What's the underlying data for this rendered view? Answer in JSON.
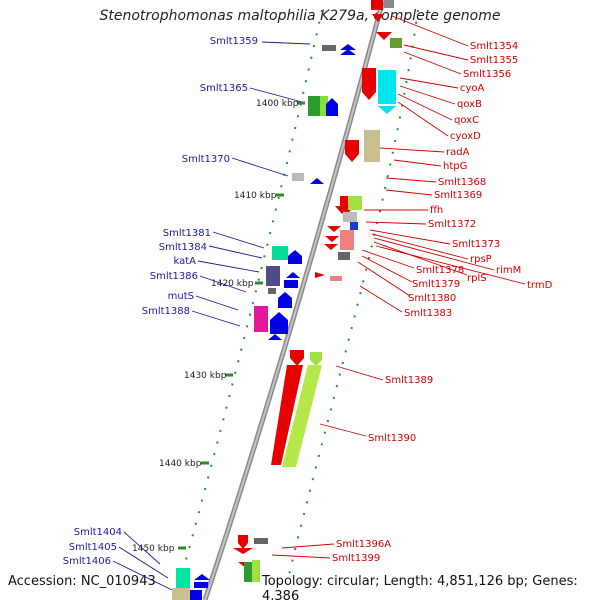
{
  "header": {
    "title": "Stenotrophomonas maltophilia K279a, complete genome"
  },
  "footer": {
    "accession": "Accession: NC_010943",
    "topology": "Topology: circular; Length: 4,851,126 bp; Genes: 4,386"
  },
  "scale_labels": [
    "1400 kbp",
    "1410 kbp",
    "1420 kbp",
    "1430 kbp",
    "1440 kbp",
    "1450 kbp"
  ],
  "genes_right": [
    "Smlt1354",
    "Smlt1355",
    "Smlt1356",
    "cyoA",
    "qoxB",
    "qoxC",
    "cyoxD",
    "radA",
    "htpG",
    "Smlt1368",
    "Smlt1369",
    "ffh",
    "Smlt1372",
    "Smlt1373",
    "rpsP",
    "rimM",
    "rplS",
    "trmD",
    "Smlt1378",
    "Smlt1379",
    "Smlt1380",
    "Smlt1383",
    "Smlt1389",
    "Smlt1390",
    "Smlt1396A",
    "Smlt1399"
  ],
  "genes_left": [
    "Smlt1359",
    "Smlt1365",
    "Smlt1370",
    "Smlt1381",
    "Smlt1384",
    "katA",
    "Smlt1386",
    "mutS",
    "Smlt1388",
    "Smlt1404",
    "Smlt1405",
    "Smlt1406"
  ],
  "colors": {
    "backbone": "#999999",
    "forward_strand": "#e60000",
    "reverse_strand": "#0000e6",
    "label_right": "#d40000",
    "label_left": "#1a1aa0",
    "tick": "#2e8b2e"
  }
}
